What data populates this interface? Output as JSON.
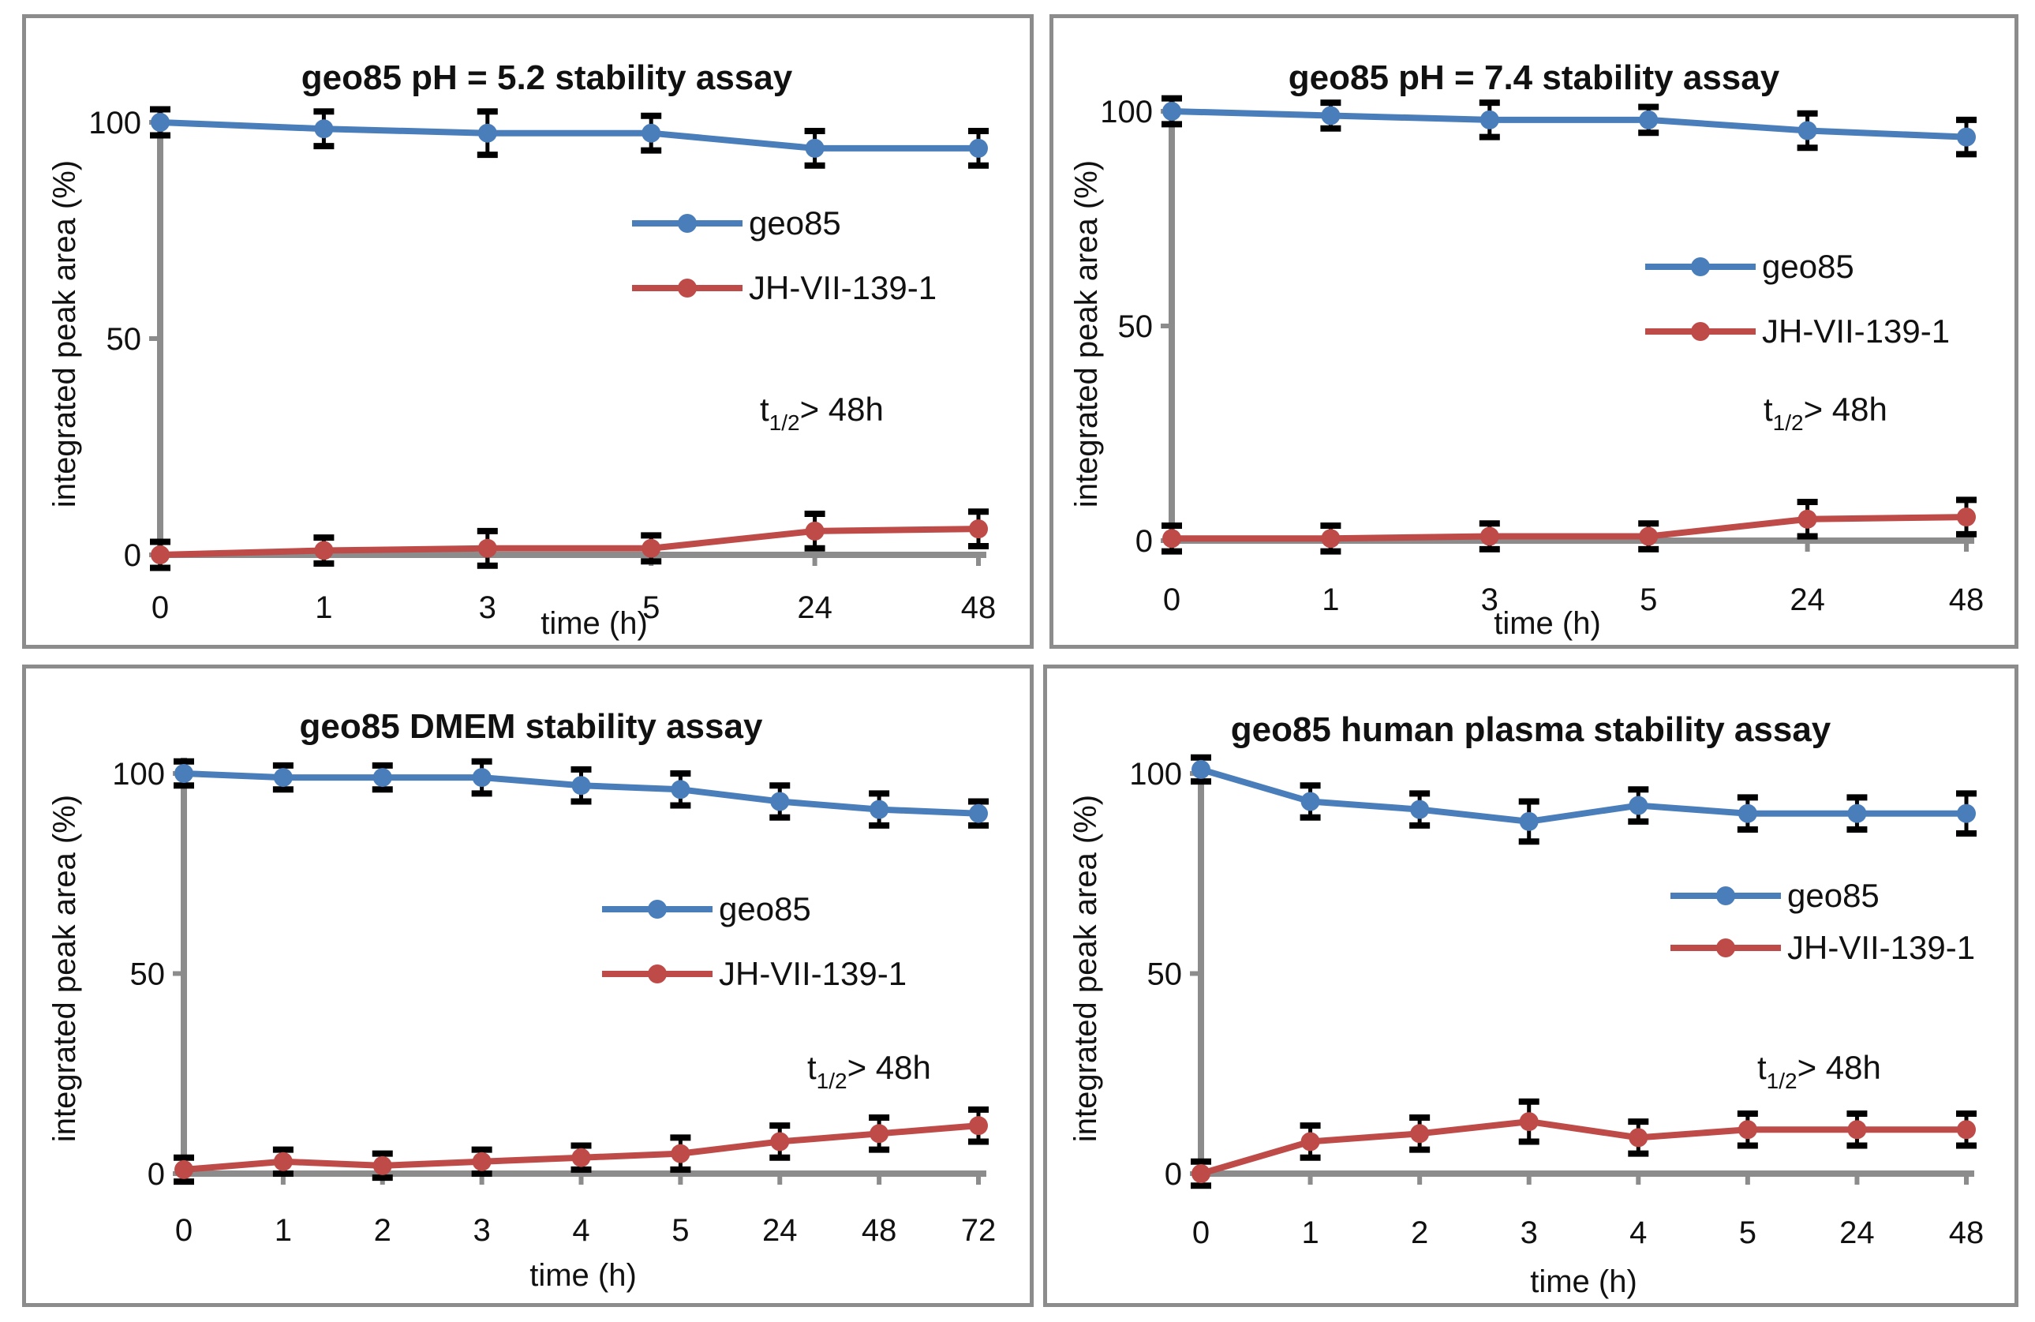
{
  "colors": {
    "geo85": "#4a7ebb",
    "jh": "#be4b48",
    "axis": "#8c8c8c",
    "errbar": "#000000"
  },
  "chart_data": [
    {
      "type": "line",
      "title": "geo85 pH = 5.2 stability assay",
      "xlabel": "time (h)",
      "ylabel": "integrated peak area (%)",
      "categories": [
        "0",
        "1",
        "3",
        "5",
        "24",
        "48"
      ],
      "ylim": [
        0,
        100
      ],
      "yticks": [
        "0",
        "50",
        "100"
      ],
      "series": [
        {
          "name": "geo85",
          "values": [
            100,
            98.5,
            97.5,
            97.5,
            94,
            94
          ],
          "errors": [
            3,
            4,
            5,
            4,
            4,
            4
          ]
        },
        {
          "name": "JH-VII-139-1",
          "values": [
            0,
            1,
            1.5,
            1.5,
            5.5,
            6
          ],
          "errors": [
            3,
            3,
            4,
            3,
            4,
            4
          ]
        }
      ],
      "annotation": {
        "t": "t",
        "sub": "1/2",
        "rest": "> 48h"
      }
    },
    {
      "type": "line",
      "title": "geo85 pH = 7.4 stability assay",
      "xlabel": "time (h)",
      "ylabel": "integrated peak area (%)",
      "categories": [
        "0",
        "1",
        "3",
        "5",
        "24",
        "48"
      ],
      "ylim": [
        0,
        100
      ],
      "yticks": [
        "0",
        "50",
        "100"
      ],
      "series": [
        {
          "name": "geo85",
          "values": [
            100,
            99,
            98,
            98,
            95.5,
            94
          ],
          "errors": [
            3,
            3,
            4,
            3,
            4,
            4
          ]
        },
        {
          "name": "JH-VII-139-1",
          "values": [
            0.5,
            0.5,
            1,
            1,
            5,
            5.5
          ],
          "errors": [
            3,
            3,
            3,
            3,
            4,
            4
          ]
        }
      ],
      "annotation": {
        "t": "t",
        "sub": "1/2",
        "rest": "> 48h"
      }
    },
    {
      "type": "line",
      "title": "geo85 DMEM stability assay",
      "xlabel": "time (h)",
      "ylabel": "integrated peak area (%)",
      "categories": [
        "0",
        "1",
        "2",
        "3",
        "4",
        "5",
        "24",
        "48",
        "72"
      ],
      "ylim": [
        0,
        100
      ],
      "yticks": [
        "0",
        "50",
        "100"
      ],
      "series": [
        {
          "name": "geo85",
          "values": [
            100,
            99,
            99,
            99,
            97,
            96,
            93,
            91,
            90
          ],
          "errors": [
            3,
            3,
            3,
            4,
            4,
            4,
            4,
            4,
            3
          ]
        },
        {
          "name": "JH-VII-139-1",
          "values": [
            1,
            3,
            2,
            3,
            4,
            5,
            8,
            10,
            12
          ],
          "errors": [
            3,
            3,
            3,
            3,
            3,
            4,
            4,
            4,
            4
          ]
        }
      ],
      "annotation": {
        "t": "t",
        "sub": "1/2",
        "rest": "> 48h"
      }
    },
    {
      "type": "line",
      "title": "geo85 human plasma stability assay",
      "xlabel": "time (h)",
      "ylabel": "integrated peak area (%)",
      "categories": [
        "0",
        "1",
        "2",
        "3",
        "4",
        "5",
        "24",
        "48"
      ],
      "ylim": [
        0,
        100
      ],
      "yticks": [
        "0",
        "50",
        "100"
      ],
      "series": [
        {
          "name": "geo85",
          "values": [
            101,
            93,
            91,
            88,
            92,
            90,
            90,
            90
          ],
          "errors": [
            3,
            4,
            4,
            5,
            4,
            4,
            4,
            5
          ]
        },
        {
          "name": "JH-VII-139-1",
          "values": [
            0,
            8,
            10,
            13,
            9,
            11,
            11,
            11
          ],
          "errors": [
            3,
            4,
            4,
            5,
            4,
            4,
            4,
            4
          ]
        }
      ],
      "annotation": {
        "t": "t",
        "sub": "1/2",
        "rest": "> 48h"
      }
    }
  ]
}
